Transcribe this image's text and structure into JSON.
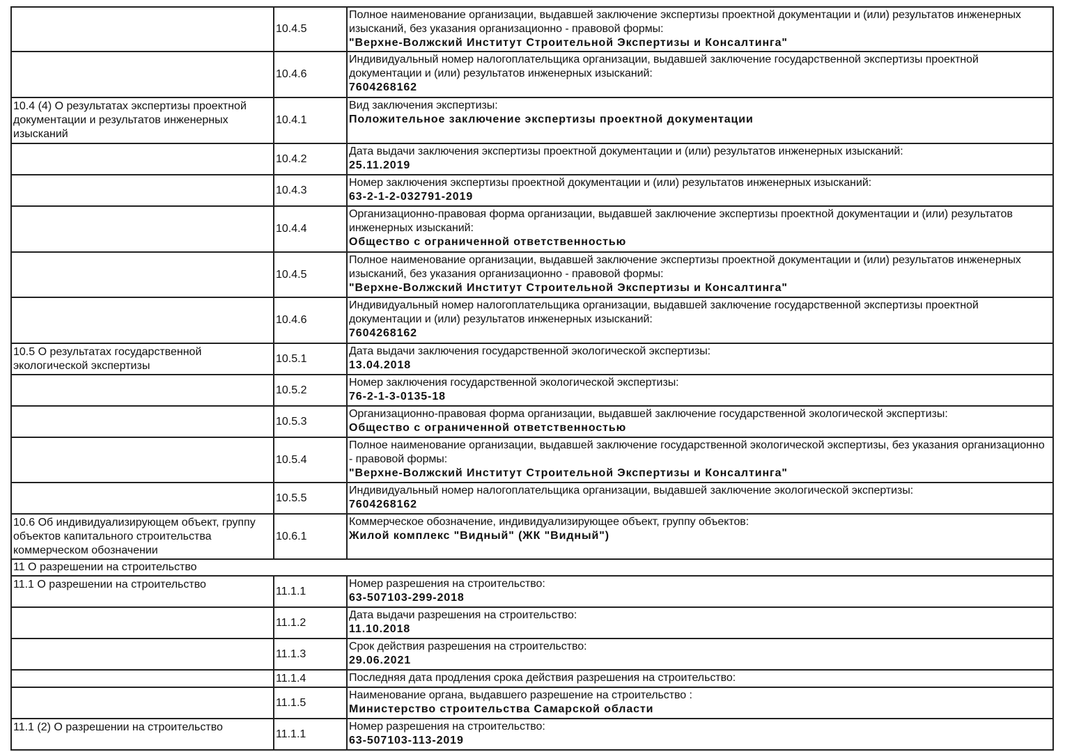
{
  "rows": [
    {
      "section": "",
      "code": "10.4.5",
      "label": "Полное наименование организации, выдавшей заключение экспертизы проектной документации и (или) результатов инженерных изысканий, без указания организационно - правовой формы:",
      "value": "\"Верхне-Волжский Институт Строительной Экспертизы и Консалтинга\""
    },
    {
      "section": "",
      "code": "10.4.6",
      "label": "Индивидуальный номер налогоплательщика организации, выдавшей заключение государственной экспертизы проектной документации и (или) результатов инженерных изысканий:",
      "value": "7604268162"
    },
    {
      "section": "10.4 (4) О результатах экспертизы проектной документации и результатов инженерных изысканий",
      "code": "10.4.1",
      "label": "Вид заключения экспертизы:",
      "value": "Положительное заключение экспертизы проектной документации"
    },
    {
      "section": "",
      "code": "10.4.2",
      "label": "Дата выдачи заключения экспертизы проектной документации и (или) результатов инженерных изысканий:",
      "value": "25.11.2019"
    },
    {
      "section": "",
      "code": "10.4.3",
      "label": "Номер заключения экспертизы проектной документации и (или) результатов инженерных изысканий:",
      "value": "63-2-1-2-032791-2019"
    },
    {
      "section": "",
      "code": "10.4.4",
      "label": "Организационно-правовая форма организации, выдавшей заключение экспертизы проектной документации и (или) результатов инженерных изысканий:",
      "value": "Общество с ограниченной ответственностью"
    },
    {
      "section": "",
      "code": "10.4.5",
      "label": "Полное наименование организации, выдавшей заключение экспертизы проектной документации и (или) результатов инженерных изысканий, без указания организационно - правовой формы:",
      "value": "\"Верхне-Волжский Институт Строительной Экспертизы и Консалтинга\""
    },
    {
      "section": "",
      "code": "10.4.6",
      "label": "Индивидуальный номер налогоплательщика организации, выдавшей заключение государственной экспертизы проектной документации и (или) результатов инженерных изысканий:",
      "value": "7604268162"
    },
    {
      "section": "10.5 О результатах государственной экологической экспертизы",
      "code": "10.5.1",
      "label": "Дата выдачи заключения государственной экологической экспертизы:",
      "value": "13.04.2018"
    },
    {
      "section": "",
      "code": "10.5.2",
      "label": "Номер заключения государственной экологической экспертизы:",
      "value": "76-2-1-3-0135-18"
    },
    {
      "section": "",
      "code": "10.5.3",
      "label": "Организационно-правовая форма организации, выдавшей заключение государственной экологической экспертизы:",
      "value": "Общество с ограниченной ответственностью"
    },
    {
      "section": "",
      "code": "10.5.4",
      "label": "Полное наименование организации, выдавшей заключение государственной экологической экспертизы, без указания организационно - правовой формы:",
      "value": "\"Верхне-Волжский Институт Строительной Экспертизы и Консалтинга\""
    },
    {
      "section": "",
      "code": "10.5.5",
      "label": "Индивидуальный номер налогоплательщика организации, выдавшей заключение экологической экспертизы:",
      "value": "7604268162"
    },
    {
      "section": "10.6 Об индивидуализирующем объект, группу объектов капитального строительства коммерческом обозначении",
      "code": "10.6.1",
      "label": "Коммерческое обозначение, индивидуализирующее объект, группу объектов:",
      "value": "Жилой комплекс \"Видный\" (ЖК \"Видный\")"
    },
    {
      "heading": "11 О разрешении на строительство"
    },
    {
      "section": "11.1 О разрешении на строительство",
      "code": "11.1.1",
      "label": "Номер разрешения на строительство:",
      "value": "63-507103-299-2018"
    },
    {
      "section": "",
      "code": "11.1.2",
      "label": "Дата выдачи разрешения на строительство:",
      "value": "11.10.2018"
    },
    {
      "section": "",
      "code": "11.1.3",
      "label": "Срок действия разрешения на строительство:",
      "value": "29.06.2021"
    },
    {
      "section": "",
      "code": "11.1.4",
      "label": "Последняя дата продления срока действия разрешения на строительство:",
      "value": ""
    },
    {
      "section": "",
      "code": "11.1.5",
      "label": "Наименование органа, выдавшего разрешение на строительство :",
      "value": "Министерство строительства Самарской области"
    },
    {
      "section": "11.1 (2) О разрешении на строительство",
      "code": "11.1.1",
      "label": "Номер разрешения на строительство:",
      "value": "63-507103-113-2019"
    }
  ]
}
